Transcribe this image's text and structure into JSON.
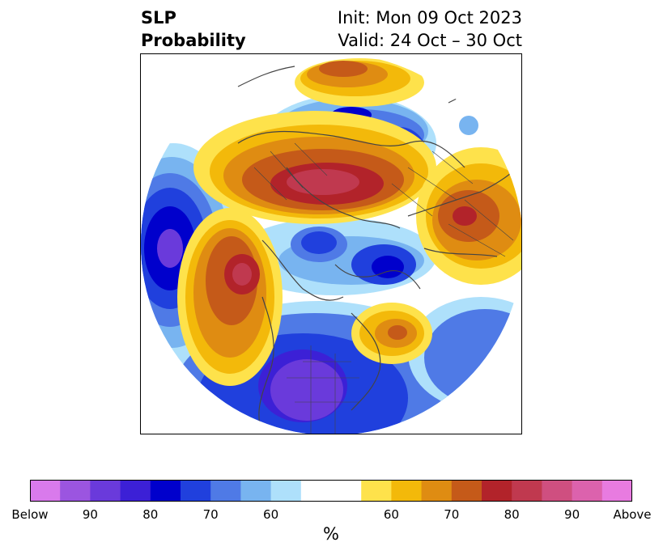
{
  "title": {
    "variable_line1": "SLP",
    "variable_line2": "Probability",
    "init": "Init: Mon 09 Oct 2023",
    "valid": "Valid: 24 Oct – 30 Oct"
  },
  "colorbar": {
    "unit": "%",
    "below_colors": [
      "#d97aec",
      "#9b55e0",
      "#6a3adb",
      "#3c20d6",
      "#0000cc",
      "#2040dd",
      "#4f7ae6",
      "#78b4f0",
      "#aee0fb"
    ],
    "neutral_color": "#ffffff",
    "above_colors": [
      "#fee24b",
      "#f3b90a",
      "#df8c12",
      "#c55a19",
      "#b2232a",
      "#c0394f",
      "#cf4f80",
      "#dc62ad",
      "#e87be0"
    ],
    "labels": [
      {
        "text": "Below"
      },
      {
        "text": "90"
      },
      {
        "text": "80"
      },
      {
        "text": "70"
      },
      {
        "text": "60"
      },
      {
        "text": "60"
      },
      {
        "text": "70"
      },
      {
        "text": "80"
      },
      {
        "text": "90"
      },
      {
        "text": "Above"
      }
    ]
  },
  "map": {
    "projection": "north-polar-stereographic",
    "coastline_color": "#444444",
    "background": "#ffffff"
  }
}
